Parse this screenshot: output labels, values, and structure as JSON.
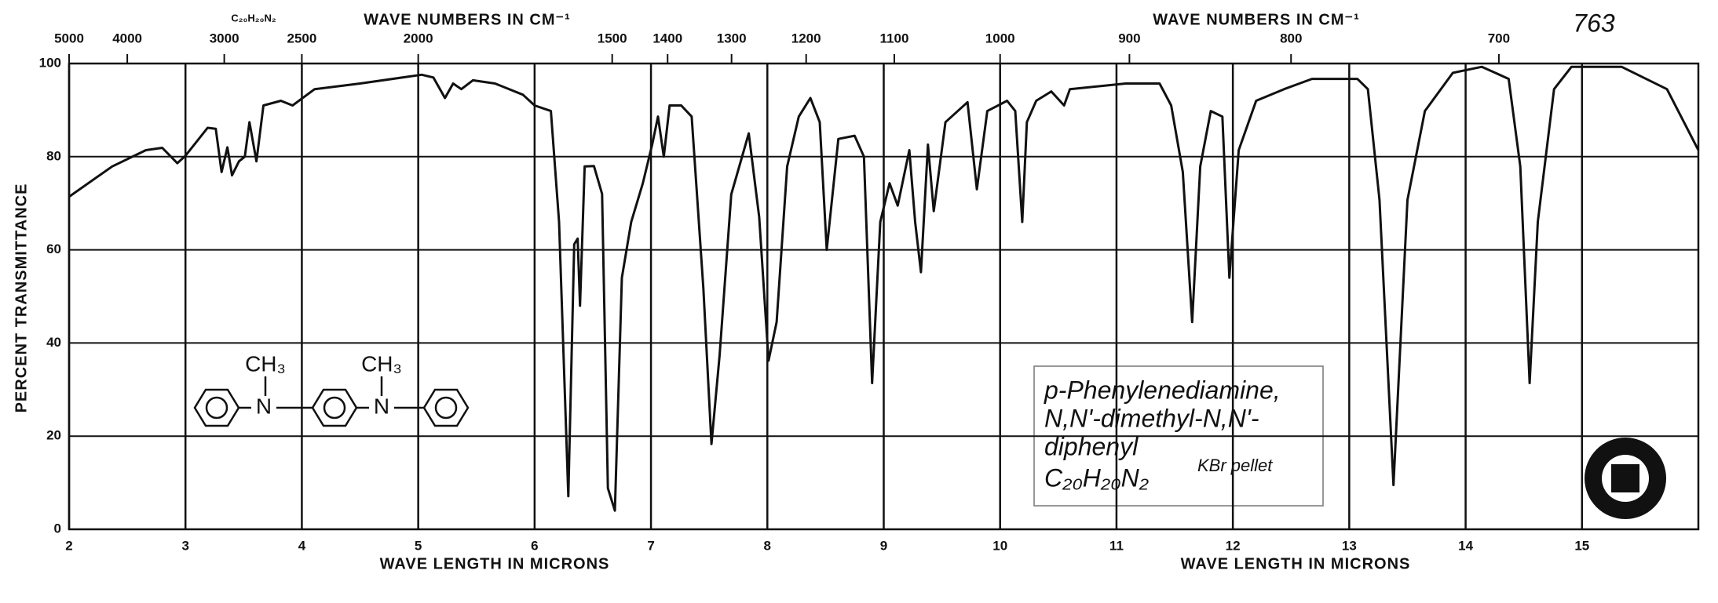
{
  "chart_data": {
    "type": "line",
    "top_title_left": "WAVE NUMBERS IN CM⁻¹",
    "top_title_right": "WAVE NUMBERS IN CM⁻¹",
    "xlabel_left": "WAVE LENGTH IN MICRONS",
    "xlabel_right": "WAVE LENGTH IN MICRONS",
    "ylabel": "PERCENT TRANSMITTANCE",
    "chart_number": "763",
    "top_formula": "C₂₀H₂₀N₂",
    "compound_lines": [
      "p-Phenylenediamine,",
      "N,N'-dimethyl-N,N'-",
      "diphenyl",
      "C₂₀H₂₀N₂"
    ],
    "sample_note": "KBr pellet",
    "structure_labels": [
      "CH₃",
      "N",
      "CH₃",
      "N"
    ],
    "xlim": [
      2,
      16
    ],
    "xticks": [
      2,
      3,
      4,
      5,
      6,
      7,
      8,
      9,
      10,
      11,
      12,
      13,
      14,
      15
    ],
    "x2ticks": [
      5000,
      4000,
      3000,
      2500,
      2000,
      1500,
      1400,
      1300,
      1200,
      1100,
      1000,
      900,
      800,
      700
    ],
    "ylim": [
      0,
      100
    ],
    "yticks": [
      0,
      20,
      40,
      60,
      80,
      100
    ],
    "grid": true,
    "color": "#111111",
    "x": [
      2.0,
      2.37,
      2.66,
      2.8,
      2.93,
      3.0,
      3.19,
      3.26,
      3.31,
      3.36,
      3.4,
      3.46,
      3.51,
      3.55,
      3.61,
      3.67,
      3.82,
      3.92,
      4.11,
      4.5,
      5.03,
      5.13,
      5.23,
      5.3,
      5.37,
      5.47,
      5.66,
      5.9,
      6.0,
      6.14,
      6.21,
      6.29,
      6.34,
      6.37,
      6.39,
      6.43,
      6.51,
      6.58,
      6.63,
      6.69,
      6.75,
      6.83,
      6.93,
      7.01,
      7.06,
      7.11,
      7.16,
      7.26,
      7.35,
      7.45,
      7.52,
      7.59,
      7.69,
      7.84,
      7.93,
      8.01,
      8.08,
      8.17,
      8.27,
      8.37,
      8.45,
      8.51,
      8.61,
      8.75,
      8.83,
      8.9,
      8.97,
      9.05,
      9.12,
      9.22,
      9.27,
      9.32,
      9.38,
      9.43,
      9.53,
      9.72,
      9.8,
      9.89,
      10.06,
      10.13,
      10.19,
      10.23,
      10.31,
      10.44,
      10.55,
      10.6,
      11.08,
      11.37,
      11.47,
      11.57,
      11.65,
      11.72,
      11.81,
      11.91,
      11.97,
      12.05,
      12.2,
      12.44,
      12.68,
      13.07,
      13.16,
      13.26,
      13.38,
      13.5,
      13.65,
      13.89,
      14.14,
      14.37,
      14.47,
      14.55,
      14.62,
      14.76,
      14.91,
      15.34,
      15.73,
      16.0
    ],
    "values": [
      71.4,
      77.9,
      81.4,
      81.9,
      78.6,
      80.2,
      86.2,
      86,
      76.7,
      82,
      76,
      79,
      80,
      87.4,
      79,
      91,
      92,
      91,
      94.5,
      95.7,
      97.6,
      97,
      92.6,
      95.7,
      94.5,
      96.4,
      95.7,
      93.3,
      91,
      89.8,
      66,
      7.1,
      61.2,
      62.4,
      48,
      77.9,
      78,
      72,
      8.8,
      4,
      54,
      66,
      74.3,
      82.6,
      88.6,
      80,
      91,
      91,
      88.6,
      51.7,
      18.3,
      37.4,
      71.9,
      85,
      67,
      36.2,
      44.5,
      77.9,
      88.6,
      92.6,
      87.4,
      60,
      83.8,
      84.5,
      80,
      31.4,
      66,
      74.3,
      69.5,
      81.4,
      66,
      55.2,
      82.6,
      68.3,
      87.4,
      91.7,
      73,
      89.8,
      92,
      89.8,
      66,
      87.4,
      92,
      94,
      91,
      94.5,
      95.7,
      95.7,
      91,
      76.7,
      44.5,
      77.9,
      89.8,
      88.6,
      54,
      81.4,
      92,
      94.5,
      96.7,
      96.7,
      94.5,
      70.7,
      9.5,
      70.7,
      89.8,
      98,
      99.3,
      96.7,
      77.9,
      31.4,
      66,
      94.5,
      99.3,
      99.3,
      94.5,
      81.4
    ]
  }
}
